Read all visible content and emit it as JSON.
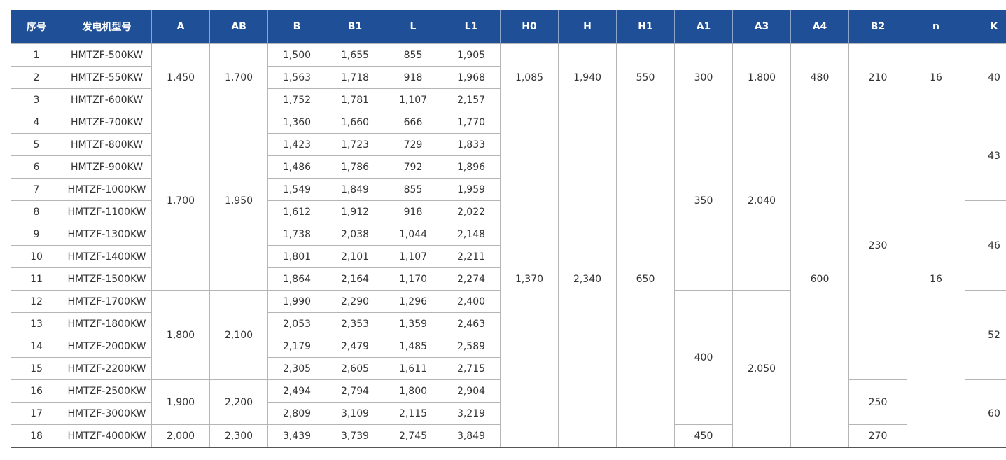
{
  "header": [
    "序号",
    "发电机型号",
    "A",
    "AB",
    "B",
    "B1",
    "L",
    "L1",
    "H0",
    "H",
    "H1",
    "A1",
    "A3",
    "A4",
    "B2",
    "n",
    "K"
  ],
  "rows": [
    [
      "1",
      "HMTZF-500KW",
      "1,450",
      "1,700",
      "1,500",
      "1,655",
      "855",
      "1,905",
      "1,085",
      "1,940",
      "550",
      "300",
      "1,800",
      "480",
      "210",
      "16",
      "40"
    ],
    [
      "2",
      "HMTZF-550KW",
      "1,563",
      "1,718",
      "918",
      "1,968"
    ],
    [
      "3",
      "HMTZF-600KW",
      "1,752",
      "1,781",
      "1,107",
      "2,157"
    ],
    [
      "4",
      "HMTZF-700KW",
      "1,700",
      "1,950",
      "1,360",
      "1,660",
      "666",
      "1,770",
      "1,370",
      "2,340",
      "650",
      "350",
      "2,040",
      "600",
      "230",
      "16",
      "43"
    ],
    [
      "5",
      "HMTZF-800KW",
      "1,423",
      "1,723",
      "729",
      "1,833"
    ],
    [
      "6",
      "HMTZF-900KW",
      "1,486",
      "1,786",
      "792",
      "1,896"
    ],
    [
      "7",
      "HMTZF-1000KW",
      "1,549",
      "1,849",
      "855",
      "1,959"
    ],
    [
      "8",
      "HMTZF-1100KW",
      "1,612",
      "1,912",
      "918",
      "2,022",
      "46"
    ],
    [
      "9",
      "HMTZF-1300KW",
      "1,738",
      "2,038",
      "1,044",
      "2,148"
    ],
    [
      "10",
      "HMTZF-1400KW",
      "1,801",
      "2,101",
      "1,107",
      "2,211"
    ],
    [
      "11",
      "HMTZF-1500KW",
      "1,864",
      "2,164",
      "1,170",
      "2,274"
    ],
    [
      "12",
      "HMTZF-1700KW",
      "1,800",
      "2,100",
      "1,990",
      "2,290",
      "1,296",
      "2,400",
      "400",
      "2,050",
      "52"
    ],
    [
      "13",
      "HMTZF-1800KW",
      "2,053",
      "2,353",
      "1,359",
      "2,463"
    ],
    [
      "14",
      "HMTZF-2000KW",
      "2,179",
      "2,479",
      "1,485",
      "2,589"
    ],
    [
      "15",
      "HMTZF-2200KW",
      "2,305",
      "2,605",
      "1,611",
      "2,715"
    ],
    [
      "16",
      "HMTZF-2500KW",
      "1,900",
      "2,200",
      "2,494",
      "2,794",
      "1,800",
      "2,904",
      "250",
      "60"
    ],
    [
      "17",
      "HMTZF-3000KW",
      "2,809",
      "3,109",
      "2,115",
      "3,219"
    ],
    [
      "18",
      "HMTZF-4000KW",
      "2,000",
      "2,300",
      "3,439",
      "3,739",
      "2,745",
      "3,849",
      "450",
      "270"
    ]
  ]
}
